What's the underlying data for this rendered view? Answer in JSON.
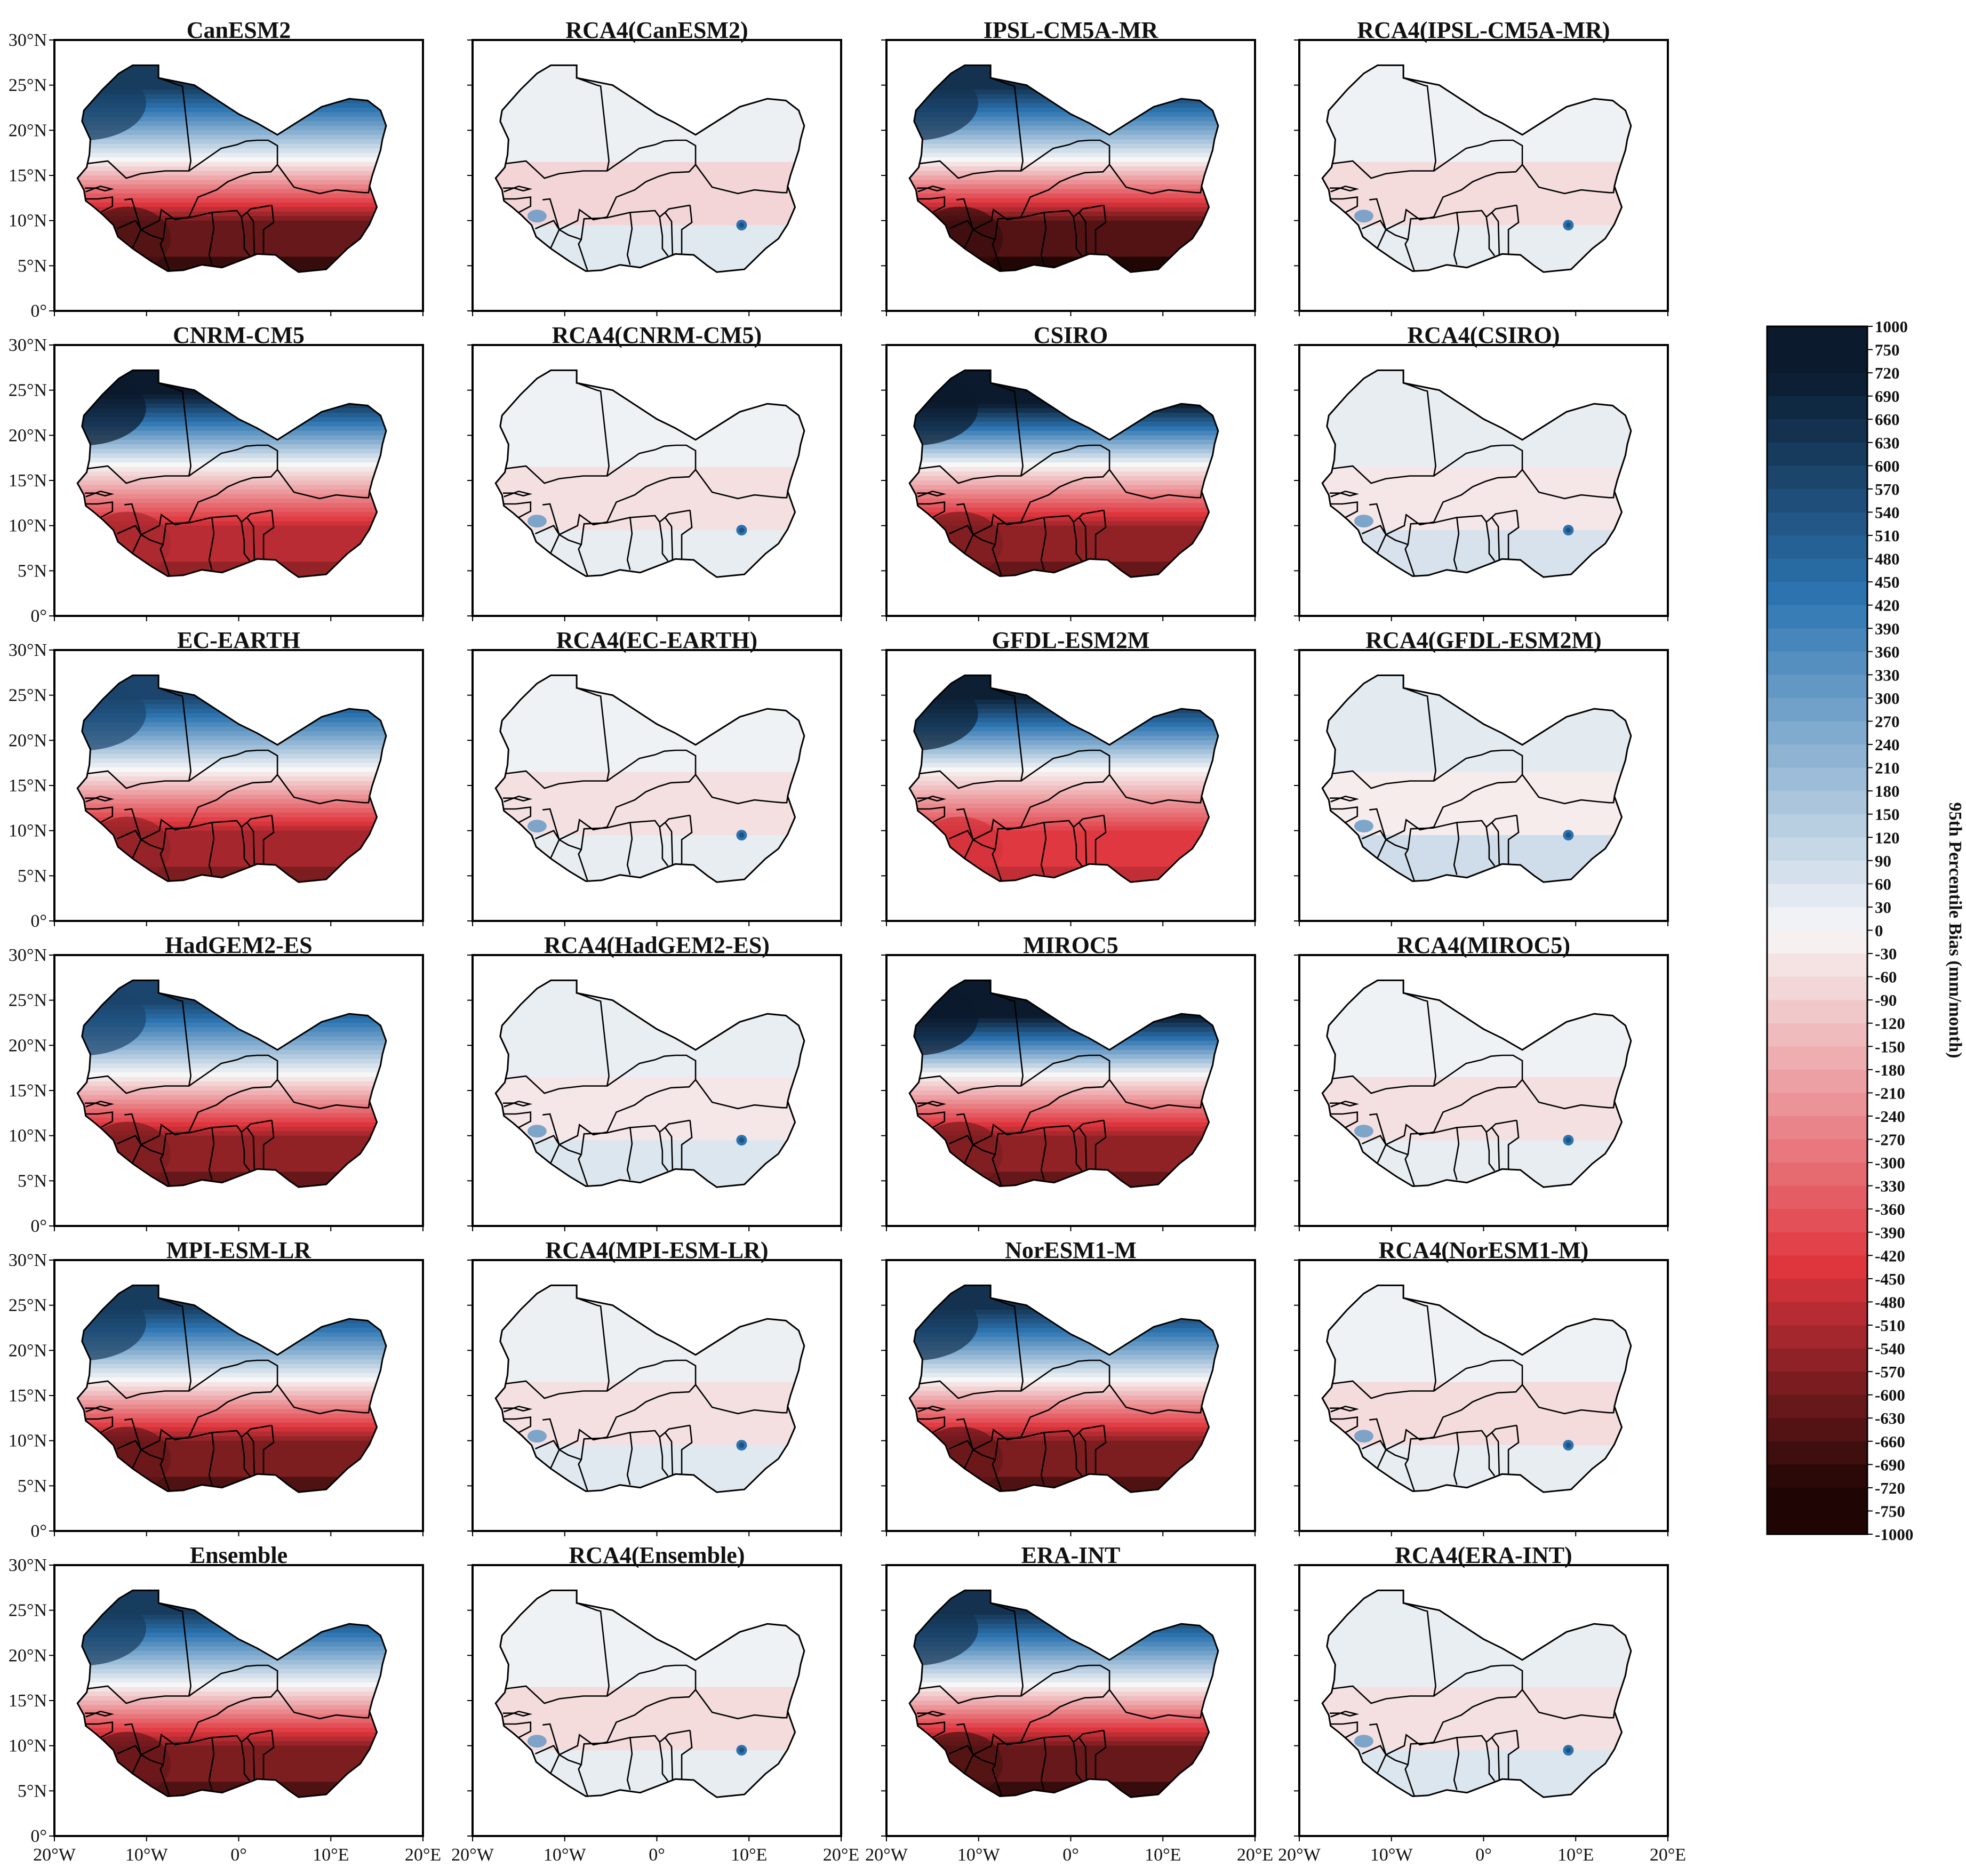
{
  "panels": [
    {
      "title": "CanESM2",
      "kind": "gcm",
      "north": 1.0,
      "south": 1.0
    },
    {
      "title": "RCA4(CanESM2)",
      "kind": "rcm",
      "north": 0.08,
      "south": 0.3
    },
    {
      "title": "IPSL-CM5A-MR",
      "kind": "gcm",
      "north": 1.05,
      "south": 1.05
    },
    {
      "title": "RCA4(IPSL-CM5A-MR)",
      "kind": "rcm",
      "north": 0.06,
      "south": 0.25
    },
    {
      "title": "CNRM-CM5",
      "kind": "gcm",
      "north": 1.2,
      "south": 0.8
    },
    {
      "title": "RCA4(CNRM-CM5)",
      "kind": "rcm",
      "north": 0.06,
      "south": 0.2
    },
    {
      "title": "CSIRO",
      "kind": "gcm",
      "north": 1.4,
      "south": 0.9
    },
    {
      "title": "RCA4(CSIRO)",
      "kind": "rcm",
      "north": 0.12,
      "south": 0.15
    },
    {
      "title": "EC-EARTH",
      "kind": "gcm",
      "north": 0.95,
      "south": 0.85
    },
    {
      "title": "RCA4(EC-EARTH)",
      "kind": "rcm",
      "north": 0.06,
      "south": 0.2
    },
    {
      "title": "GFDL-ESM2M",
      "kind": "gcm",
      "north": 1.15,
      "south": 0.7
    },
    {
      "title": "RCA4(GFDL-ESM2M)",
      "kind": "rcm",
      "north": 0.15,
      "south": 0.1
    },
    {
      "title": "HadGEM2-ES",
      "kind": "gcm",
      "north": 0.95,
      "south": 0.9
    },
    {
      "title": "RCA4(HadGEM2-ES)",
      "kind": "rcm",
      "north": 0.1,
      "south": 0.15
    },
    {
      "title": "MIROC5",
      "kind": "gcm",
      "north": 1.45,
      "south": 0.9
    },
    {
      "title": "RCA4(MIROC5)",
      "kind": "rcm",
      "north": 0.06,
      "south": 0.2
    },
    {
      "title": "MPI-ESM-LR",
      "kind": "gcm",
      "north": 1.0,
      "south": 0.95
    },
    {
      "title": "RCA4(MPI-ESM-LR)",
      "kind": "rcm",
      "north": 0.08,
      "south": 0.2
    },
    {
      "title": "NorESM1-M",
      "kind": "gcm",
      "north": 1.05,
      "south": 0.95
    },
    {
      "title": "RCA4(NorESM1-M)",
      "kind": "rcm",
      "north": 0.06,
      "south": 0.25
    },
    {
      "title": "Ensemble",
      "kind": "gcm",
      "north": 1.0,
      "south": 0.95
    },
    {
      "title": "RCA4(Ensemble)",
      "kind": "rcm",
      "north": 0.06,
      "south": 0.25
    },
    {
      "title": "ERA-INT",
      "kind": "gcm",
      "north": 1.05,
      "south": 1.0
    },
    {
      "title": "RCA4(ERA-INT)",
      "kind": "rcm",
      "north": 0.1,
      "south": 0.2
    }
  ],
  "axes": {
    "lat_ticks": [
      "30°N",
      "25°N",
      "20°N",
      "15°N",
      "10°N",
      "5°N",
      "0°"
    ],
    "lon_ticks": [
      "20°W",
      "10°W",
      "0°",
      "10°E",
      "20°E"
    ]
  },
  "colorbar": {
    "label": "95th Percentile Bias (mm/month)",
    "ticks": [
      "1000",
      "750",
      "720",
      "690",
      "660",
      "630",
      "600",
      "570",
      "540",
      "510",
      "480",
      "450",
      "420",
      "390",
      "360",
      "330",
      "300",
      "270",
      "240",
      "210",
      "180",
      "150",
      "120",
      "90",
      "60",
      "30",
      "0",
      "-30",
      "-60",
      "-90",
      "-120",
      "-150",
      "-180",
      "-210",
      "-240",
      "-270",
      "-300",
      "-330",
      "-360",
      "-390",
      "-420",
      "-450",
      "-480",
      "-510",
      "-540",
      "-570",
      "-600",
      "-630",
      "-660",
      "-690",
      "-720",
      "-750",
      "-1000"
    ]
  },
  "colors": {
    "dark_blue": "#0b1a2c",
    "blue": "#2c74b1",
    "white": "#f7f7f7",
    "red": "#e0363e",
    "dark_red": "#1f0605",
    "border": "#000000"
  }
}
